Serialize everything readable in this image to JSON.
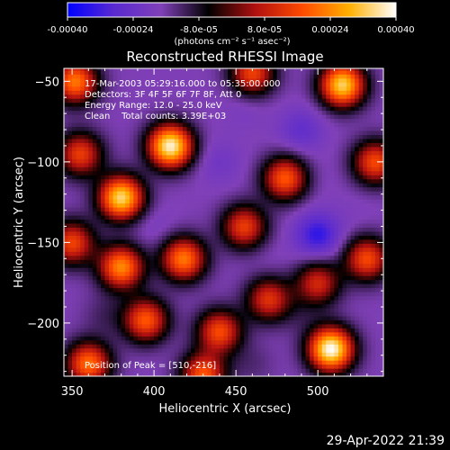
{
  "colorbar": {
    "ticks": [
      "-0.00040",
      "-0.00024",
      "-8.0e-05",
      "8.0e-05",
      "0.00024",
      "0.00040"
    ],
    "units": "(photons cm⁻² s⁻¹ asec⁻²)",
    "colors": [
      "#0000ff",
      "#5a2ad0",
      "#8040b8",
      "#000000",
      "#b01010",
      "#ff4a00",
      "#ffb000",
      "#ffffff"
    ]
  },
  "footer_timestamp": "29-Apr-2022 21:39",
  "chart_data": {
    "type": "heatmap",
    "title": "Reconstructed RHESSI Image",
    "xlabel": "Heliocentric X (arcsec)",
    "ylabel": "Heliocentric Y (arcsec)",
    "xlim": [
      345,
      540
    ],
    "ylim": [
      -233,
      -42
    ],
    "xticks": [
      350,
      400,
      450,
      500
    ],
    "yticks": [
      -50,
      -100,
      -150,
      -200
    ],
    "annotations": [
      "17-Mar-2003 05:29:16.000 to 05:35:00.000",
      "Detectors: 3F 4F 5F 6F 7F 8F, Att 0",
      "Energy Range: 12.0 - 25.0 keV",
      "Clean    Total counts: 3.39E+03"
    ],
    "peak_label": "Position of Peak = [510,-216]",
    "peak": [
      510,
      -216
    ],
    "color_range": [
      -0.0004,
      0.0004
    ],
    "blobs": [
      {
        "x": 410,
        "y": -90,
        "v": 0.00038
      },
      {
        "x": 380,
        "y": -122,
        "v": 0.00034
      },
      {
        "x": 515,
        "y": -52,
        "v": 0.00033
      },
      {
        "x": 508,
        "y": -216,
        "v": 0.0004
      },
      {
        "x": 352,
        "y": -50,
        "v": 0.00022
      },
      {
        "x": 460,
        "y": -45,
        "v": 0.00015
      },
      {
        "x": 380,
        "y": -165,
        "v": 0.00024
      },
      {
        "x": 418,
        "y": -160,
        "v": 0.00022
      },
      {
        "x": 455,
        "y": -140,
        "v": 0.00014
      },
      {
        "x": 360,
        "y": -225,
        "v": 0.00021
      },
      {
        "x": 430,
        "y": -232,
        "v": 0.00018
      },
      {
        "x": 395,
        "y": -198,
        "v": 0.00018
      },
      {
        "x": 440,
        "y": -205,
        "v": 0.00016
      },
      {
        "x": 480,
        "y": -110,
        "v": 0.00018
      },
      {
        "x": 535,
        "y": -100,
        "v": 0.00016
      },
      {
        "x": 530,
        "y": -160,
        "v": 0.00016
      },
      {
        "x": 350,
        "y": -150,
        "v": 0.00015
      },
      {
        "x": 355,
        "y": -95,
        "v": 0.00014
      },
      {
        "x": 470,
        "y": -185,
        "v": 0.00012
      },
      {
        "x": 500,
        "y": -175,
        "v": 0.0001
      },
      {
        "x": 500,
        "y": -145,
        "v": -0.00034
      },
      {
        "x": 440,
        "y": -100,
        "v": -0.00022
      },
      {
        "x": 455,
        "y": -65,
        "v": -0.0002
      },
      {
        "x": 490,
        "y": -80,
        "v": -0.00026
      },
      {
        "x": 470,
        "y": -160,
        "v": -0.00018
      },
      {
        "x": 400,
        "y": -140,
        "v": -0.0002
      },
      {
        "x": 430,
        "y": -125,
        "v": -0.00017
      },
      {
        "x": 410,
        "y": -210,
        "v": -0.00017
      },
      {
        "x": 500,
        "y": -110,
        "v": -0.00018
      },
      {
        "x": 525,
        "y": -130,
        "v": -0.00018
      },
      {
        "x": 490,
        "y": -195,
        "v": -0.00014
      },
      {
        "x": 370,
        "y": -195,
        "v": -0.00012
      },
      {
        "x": 460,
        "y": -225,
        "v": -0.00013
      }
    ]
  }
}
